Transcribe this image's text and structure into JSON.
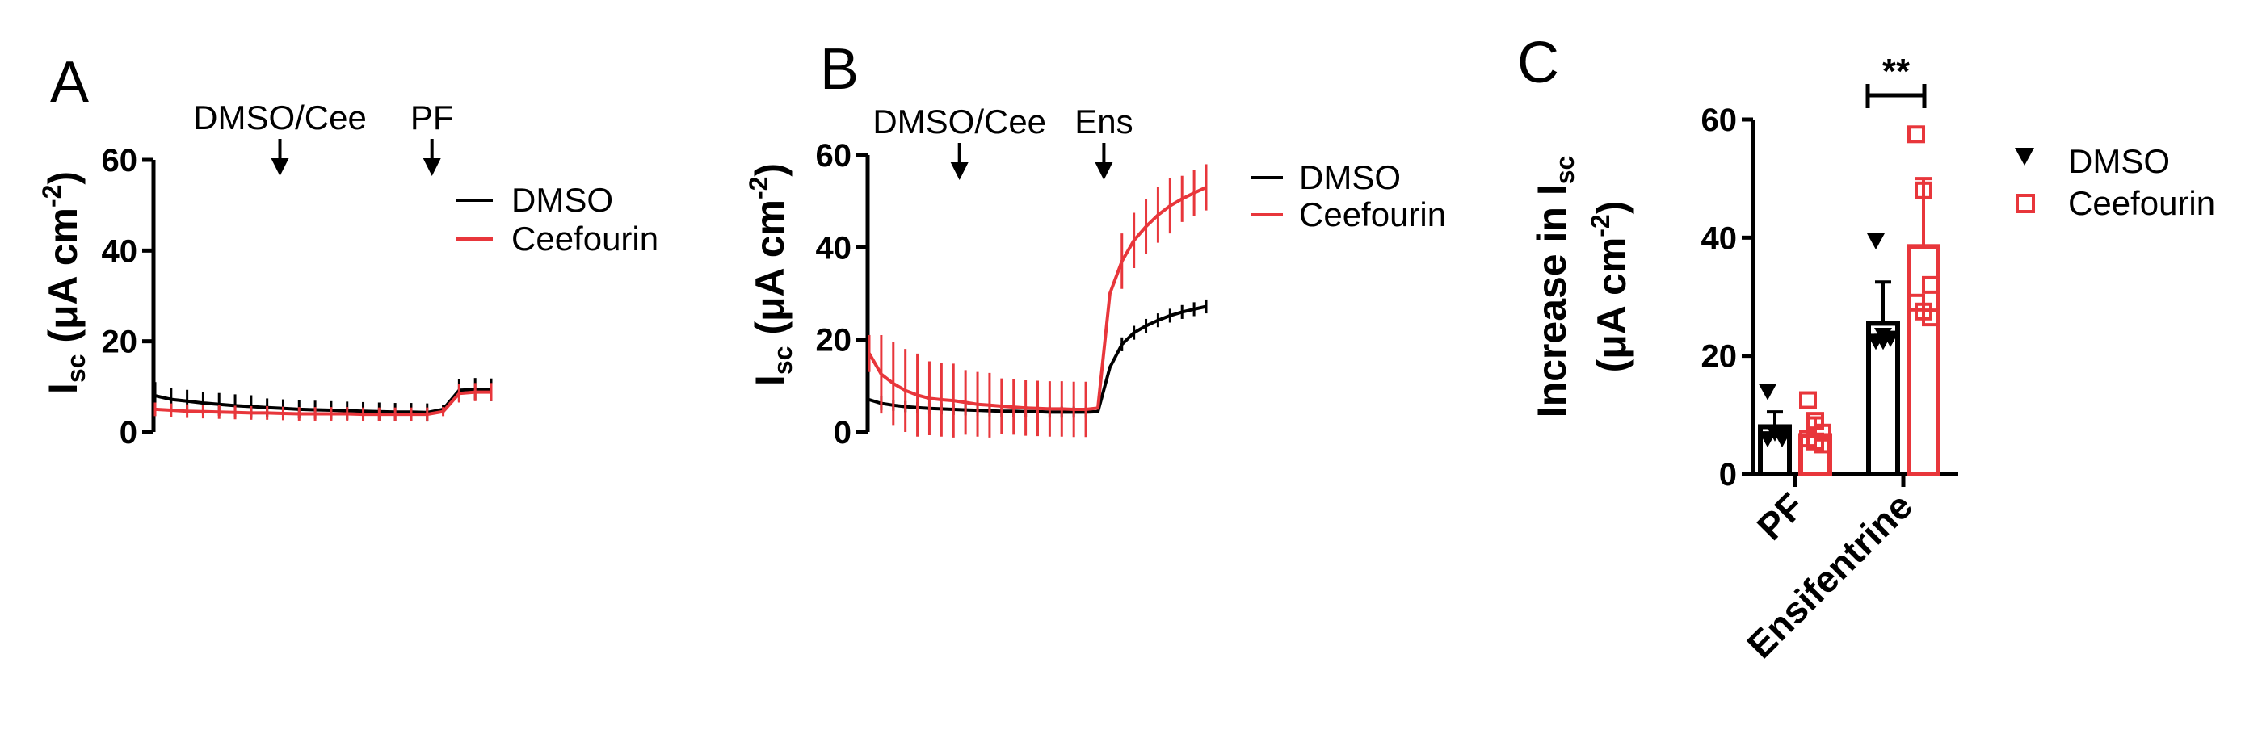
{
  "colors": {
    "dmso": "#000000",
    "ceefourin": "#e8363b"
  },
  "chart_data": [
    {
      "type": "line",
      "panel_label": "A",
      "y_label": {
        "main": "I",
        "sub": "sc",
        "rest": " (μA cm",
        "sup": "-2",
        "close": ")"
      },
      "ylim": [
        0,
        60
      ],
      "yticks": [
        0,
        20,
        40,
        60
      ],
      "annotations": [
        {
          "label": "DMSO/Cee",
          "arrow": true,
          "x": 7.8
        },
        {
          "label": "PF",
          "arrow": true,
          "x": 17.3
        }
      ],
      "series": [
        {
          "name": "DMSO",
          "color": "#000000",
          "x": [
            0,
            1,
            2,
            3,
            4,
            5,
            6,
            7,
            8,
            9,
            10,
            11,
            12,
            13,
            14,
            15,
            16,
            17,
            18,
            19,
            20,
            21
          ],
          "y": [
            8,
            7.2,
            6.8,
            6.4,
            6.1,
            5.8,
            5.6,
            5.4,
            5.2,
            5,
            4.9,
            4.8,
            4.7,
            4.6,
            4.5,
            4.4,
            4.4,
            4.3,
            5,
            9.2,
            9.4,
            9.3
          ],
          "err": [
            3,
            2.5,
            2.5,
            2.5,
            2.5,
            2.5,
            2.5,
            2,
            2,
            2,
            2,
            2,
            2,
            2,
            2,
            2,
            2,
            2,
            1,
            2.5,
            2.5,
            2.5
          ]
        },
        {
          "name": "Ceefourin",
          "color": "#e8363b",
          "x": [
            0,
            1,
            2,
            3,
            4,
            5,
            6,
            7,
            8,
            9,
            10,
            11,
            12,
            13,
            14,
            15,
            16,
            17,
            18,
            19,
            20,
            21
          ],
          "y": [
            5,
            4.8,
            4.6,
            4.5,
            4.4,
            4.3,
            4.2,
            4.2,
            4.1,
            4,
            4,
            4,
            4,
            3.9,
            3.9,
            3.9,
            3.9,
            3.9,
            4.5,
            8.5,
            8.8,
            8.8
          ],
          "err": [
            1.5,
            1.5,
            1.5,
            1.5,
            1.5,
            1.5,
            1.5,
            1.5,
            1.5,
            1.5,
            1.5,
            1.5,
            1.5,
            1.5,
            1.5,
            1.5,
            1.5,
            1.5,
            1,
            2,
            2,
            2
          ]
        }
      ],
      "legend": [
        "DMSO",
        "Ceefourin"
      ],
      "legend_position": "top-right"
    },
    {
      "type": "line",
      "panel_label": "B",
      "y_label": {
        "main": "I",
        "sub": "sc",
        "rest": " (μA cm",
        "sup": "-2",
        "close": ")"
      },
      "ylim": [
        0,
        60
      ],
      "yticks": [
        0,
        20,
        40,
        60
      ],
      "annotations": [
        {
          "label": "DMSO/Cee",
          "arrow": true,
          "x": 7.5
        },
        {
          "label": "Ens",
          "arrow": true,
          "x": 19.5
        }
      ],
      "series": [
        {
          "name": "DMSO",
          "color": "#000000",
          "x": [
            0,
            1,
            2,
            3,
            4,
            5,
            6,
            7,
            8,
            9,
            10,
            11,
            12,
            13,
            14,
            15,
            16,
            17,
            18,
            19,
            20,
            21,
            22,
            23,
            24,
            25,
            26,
            27,
            28
          ],
          "y": [
            7,
            6.2,
            5.8,
            5.5,
            5.3,
            5.1,
            5,
            4.9,
            4.8,
            4.7,
            4.6,
            4.5,
            4.5,
            4.4,
            4.4,
            4.3,
            4.3,
            4.3,
            4.3,
            4.4,
            14,
            19,
            21.5,
            23,
            24.2,
            25.2,
            26,
            26.6,
            27.2
          ],
          "err": [
            0,
            1.5,
            1.2,
            1.2,
            1.2,
            1.2,
            1.2,
            1.2,
            1.2,
            1.2,
            1.2,
            1.2,
            1.2,
            1.2,
            1.2,
            1.2,
            1.2,
            1.2,
            1.2,
            0,
            0,
            1.5,
            1.5,
            1.5,
            1.5,
            1.5,
            1.5,
            1.5,
            1.5
          ]
        },
        {
          "name": "Ceefourin",
          "color": "#e8363b",
          "x": [
            0,
            1,
            2,
            3,
            4,
            5,
            6,
            7,
            8,
            9,
            10,
            11,
            12,
            13,
            14,
            15,
            16,
            17,
            18,
            19,
            20,
            21,
            22,
            23,
            24,
            25,
            26,
            27,
            28
          ],
          "y": [
            17,
            12.5,
            10.5,
            9,
            8,
            7.3,
            7,
            6.8,
            6.4,
            6,
            5.8,
            5.6,
            5.4,
            5.2,
            5.1,
            5,
            5,
            4.9,
            4.9,
            5.2,
            30,
            37,
            41.5,
            44.5,
            47,
            49,
            50.5,
            51.8,
            53
          ],
          "err": [
            4,
            8.5,
            9,
            9,
            9,
            8,
            8,
            8,
            7,
            7,
            7,
            6,
            6,
            6,
            6,
            6,
            6,
            6,
            6,
            0,
            0,
            6,
            6,
            6,
            6,
            6,
            5,
            5,
            5
          ]
        }
      ],
      "legend": [
        "DMSO",
        "Ceefourin"
      ],
      "legend_position": "top-right"
    },
    {
      "type": "bar",
      "panel_label": "C",
      "y_label_line1": "Increase in I",
      "y_label_line1_sub": "sc",
      "y_label_line2": {
        "open": "(μA cm",
        "sup": "-2",
        "close": ")"
      },
      "ylim": [
        0,
        60
      ],
      "yticks": [
        0,
        20,
        40,
        60
      ],
      "categories": [
        "PF",
        "Ensifentrine"
      ],
      "series": [
        {
          "name": "DMSO",
          "color": "#000000",
          "marker": "filled-down-triangle",
          "values": [
            8,
            25.5
          ],
          "err": [
            2.5,
            7
          ],
          "points": [
            [
              14,
              7,
              7,
              6,
              7,
              6
            ],
            [
              39.5,
              23.5,
              23,
              22.5,
              22.5,
              23
            ]
          ]
        },
        {
          "name": "Ceefourin",
          "color": "#e8363b",
          "marker": "open-square",
          "values": [
            6.5,
            38.5
          ],
          "err": [
            3,
            11.5
          ],
          "points": [
            [
              12.5,
              9,
              7,
              6,
              5.5,
              5
            ],
            [
              57.5,
              48,
              32,
              29,
              27.5,
              26.5
            ]
          ]
        }
      ],
      "significance": {
        "label": "**",
        "category": "Ensifentrine",
        "y": 63.5
      },
      "legend": [
        "DMSO",
        "Ceefourin"
      ],
      "legend_position": "top-right"
    }
  ]
}
